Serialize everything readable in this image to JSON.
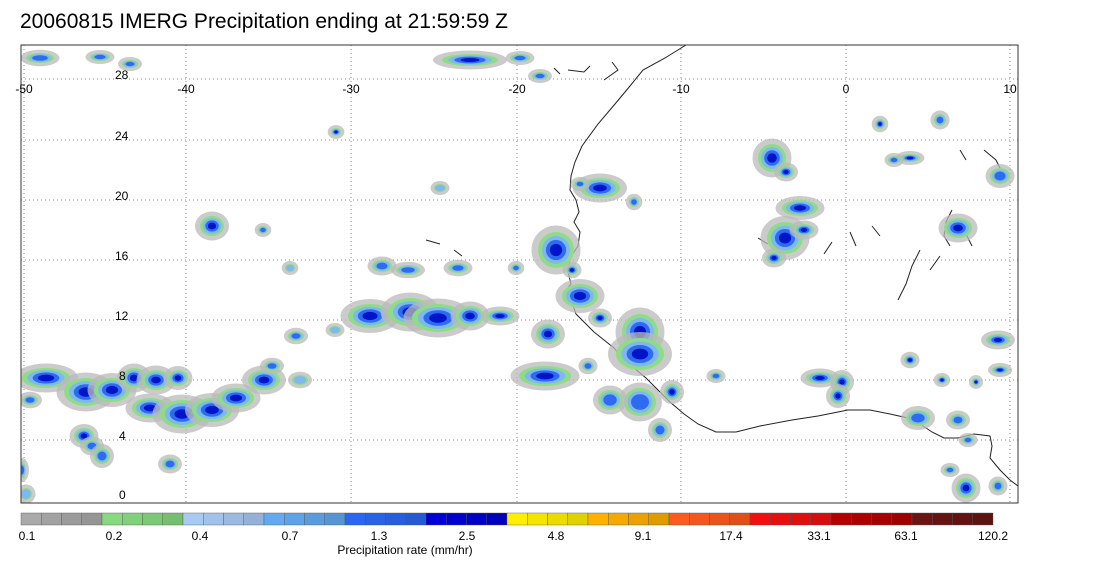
{
  "title": "20060815 IMERG Precipitation ending at 21:59:59 Z",
  "map": {
    "lon_labels": [
      "-50",
      "-40",
      "-30",
      "-20",
      "-10",
      "0",
      "10"
    ],
    "lat_labels": [
      "28",
      "24",
      "20",
      "16",
      "12",
      "8",
      "4",
      "0"
    ],
    "lon_range": [
      -50,
      10
    ],
    "lat_range": [
      -0.5,
      30
    ],
    "gridlines": "dotted"
  },
  "colorbar": {
    "label": "Precipitation rate (mm/hr)",
    "tick_labels": [
      "0.1",
      "0.2",
      "0.4",
      "0.7",
      "1.3",
      "2.5",
      "4.8",
      "9.1",
      "17.4",
      "33.1",
      "63.1",
      "120.2"
    ],
    "color_groups": [
      "#a9a9a9",
      "#86d97f",
      "#a9c9f5",
      "#62a9f1",
      "#2a66f0",
      "#0000d4",
      "#ffee00",
      "#ffb000",
      "#ff5a1e",
      "#f01010",
      "#b40000",
      "#6a1414"
    ]
  }
}
